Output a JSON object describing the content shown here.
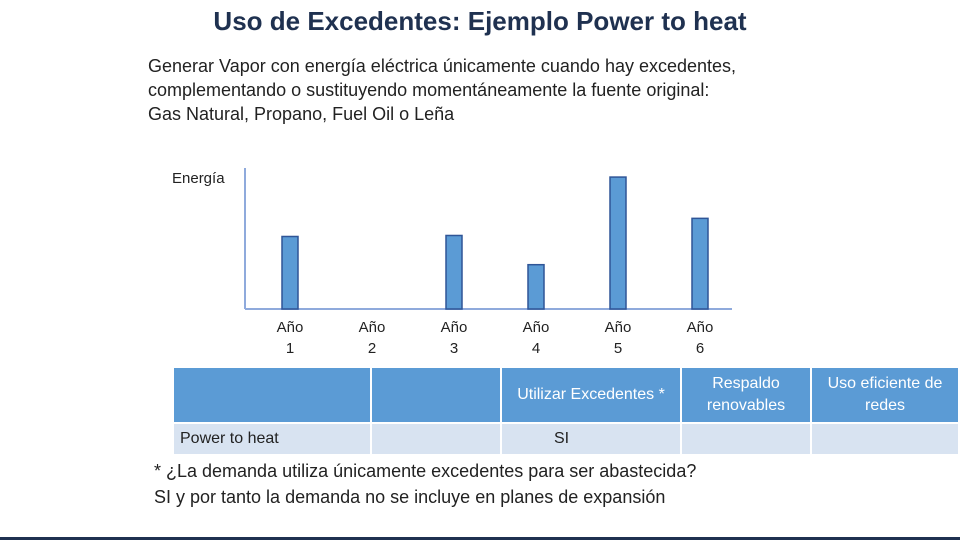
{
  "slide": {
    "title": "Uso de Excedentes: Ejemplo Power to heat",
    "intro_lines": [
      "Generar Vapor con energía eléctrica únicamente cuando hay excedentes,",
      "complementando o sustituyendo momentáneamente la fuente original:",
      "Gas Natural, Propano, Fuel Oil o Leña"
    ]
  },
  "chart_data": {
    "type": "bar",
    "ylabel": "Energía",
    "xlabel": "",
    "title": "",
    "categories": [
      [
        "Año",
        "1"
      ],
      [
        "Año",
        "2"
      ],
      [
        "Año",
        "3"
      ],
      [
        "Año",
        "4"
      ],
      [
        "Año",
        "5"
      ],
      [
        "Año",
        "6"
      ]
    ],
    "values": [
      72,
      0,
      73,
      44,
      131,
      90
    ],
    "ylim": [
      0,
      140
    ],
    "bar_color": "#5b9bd5",
    "bar_border": "#2f5597",
    "grid": false
  },
  "table": {
    "header": [
      "",
      "",
      "Utilizar Excedentes *",
      "Respaldo renovables",
      "Uso eficiente de redes"
    ],
    "row": [
      "Power to heat",
      "",
      "SI",
      "",
      ""
    ]
  },
  "footnote": [
    "* ¿La demanda utiliza únicamente excedentes para ser abastecida?",
    "SI y por tanto la demanda no se incluye en planes de expansión"
  ],
  "colors": {
    "title": "#1f3150",
    "table_header": "#5b9bd5",
    "table_row": "#d8e3f1",
    "axis": "#8faadc"
  }
}
